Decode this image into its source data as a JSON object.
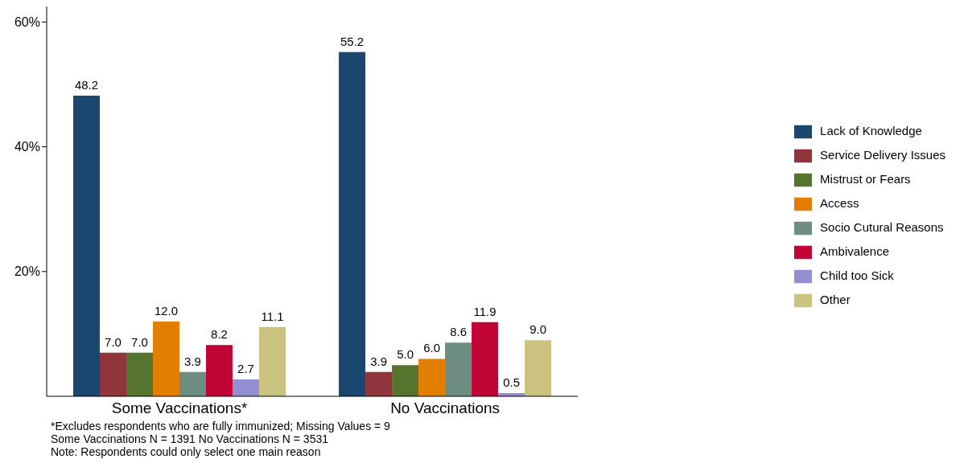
{
  "chart_data": {
    "type": "bar",
    "categories": [
      "Some Vaccinations*",
      "No Vaccinations"
    ],
    "series": [
      {
        "name": "Lack of Knowledge",
        "color": "#1a476f",
        "values": [
          48.2,
          55.2
        ],
        "value_labels": [
          "48.2",
          "55.2"
        ]
      },
      {
        "name": "Service Delivery Issues",
        "color": "#90353b",
        "values": [
          7.0,
          3.9
        ],
        "value_labels": [
          "7.0",
          "3.9"
        ]
      },
      {
        "name": "Mistrust or Fears",
        "color": "#55752f",
        "values": [
          7.0,
          5.0
        ],
        "value_labels": [
          "7.0",
          "5.0"
        ]
      },
      {
        "name": "Access",
        "color": "#e37e00",
        "values": [
          12.0,
          6.0
        ],
        "value_labels": [
          "12.0",
          "6.0"
        ]
      },
      {
        "name": "Socio Cutural Reasons",
        "color": "#6e8e84",
        "values": [
          3.9,
          8.6
        ],
        "value_labels": [
          "3.9",
          "8.6"
        ]
      },
      {
        "name": "Ambivalence",
        "color": "#c10534",
        "values": [
          8.2,
          11.9
        ],
        "value_labels": [
          "8.2",
          "11.9"
        ]
      },
      {
        "name": "Child too Sick",
        "color": "#938dd2",
        "values": [
          2.7,
          0.5
        ],
        "value_labels": [
          "2.7",
          "0.5"
        ]
      },
      {
        "name": "Other",
        "color": "#cac27e",
        "values": [
          11.1,
          9.0
        ],
        "value_labels": [
          "11.1",
          "9.0"
        ]
      }
    ],
    "ylim": [
      0,
      62.5
    ],
    "yticks": [
      {
        "value": 20,
        "label": "20%"
      },
      {
        "value": 40,
        "label": "40%"
      },
      {
        "value": 60,
        "label": "60%"
      }
    ],
    "grid": false,
    "legend": "right",
    "annotations": [
      "*Excludes respondents who are fully immunized; Missing Values = 9",
      "Some Vaccinations N = 1391 No Vaccinations N = 3531",
      "Note: Respondents could only select one main reason"
    ]
  }
}
